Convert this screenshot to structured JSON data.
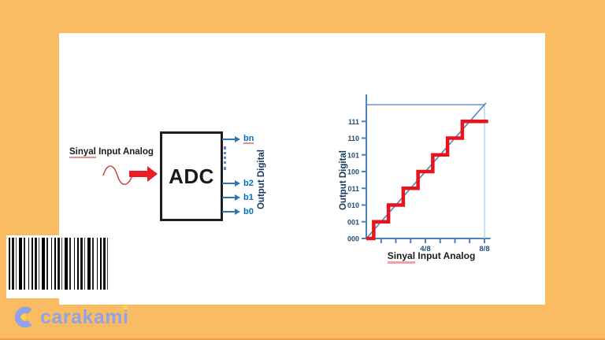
{
  "colors": {
    "page_background": "#fabc62",
    "slide_background": "#ffffff",
    "accent_red": "#e8141c",
    "arrow_blue": "#2e75b6",
    "axis_blue": "#4f81bd",
    "tick_label_navy": "#1f4e79",
    "logo_periwinkle": "#93a2e6",
    "logo_dot_yellow": "#ffd24a"
  },
  "diagram": {
    "input_label": "Sinyal Input Analog",
    "input_label_word1": "Sinyal",
    "input_label_rest": "Input Analog",
    "block_label": "ADC",
    "outputs": [
      "bn",
      "b2",
      "b1",
      "b0"
    ],
    "output_group_label": "Output Digital"
  },
  "chart_data": {
    "type": "line",
    "title": "",
    "xlabel": "Sinyal Input Analog",
    "xlabel_word1": "Sinyal",
    "xlabel_rest": "Input Analog",
    "ylabel": "Output Digital",
    "xlim_eighths": [
      0,
      8
    ],
    "ylim_levels": [
      0,
      8
    ],
    "grid": false,
    "axis_color": "#4f81bd",
    "boundary_color": "#a9c7e8",
    "tick_label_color": "#1f4e79",
    "top_reference_line": true,
    "right_boundary_line": true,
    "y_tick_labels": [
      "000",
      "001",
      "010",
      "011",
      "100",
      "101",
      "110",
      "111"
    ],
    "x_ticks_eighths": [
      1,
      2,
      3,
      4,
      5,
      6,
      7,
      8
    ],
    "x_tick_major": [
      {
        "pos": 4,
        "label": "4/8"
      },
      {
        "pos": 8,
        "label": "8/8"
      }
    ],
    "series": [
      {
        "name": "ideal-linear-response",
        "type": "line",
        "color": "#4f81bd",
        "points_eighths": [
          [
            0,
            0
          ],
          [
            8.1,
            8.1
          ]
        ]
      },
      {
        "name": "quantized-staircase",
        "type": "step",
        "color": "#e8141c",
        "transitions_eighths": [
          0.5,
          1.5,
          2.5,
          3.5,
          4.5,
          5.5,
          6.5
        ],
        "levels": [
          0,
          1,
          2,
          3,
          4,
          5,
          6,
          7
        ],
        "end_eighths": 8.25
      }
    ]
  },
  "footer": {
    "logo_text": "carakami"
  }
}
